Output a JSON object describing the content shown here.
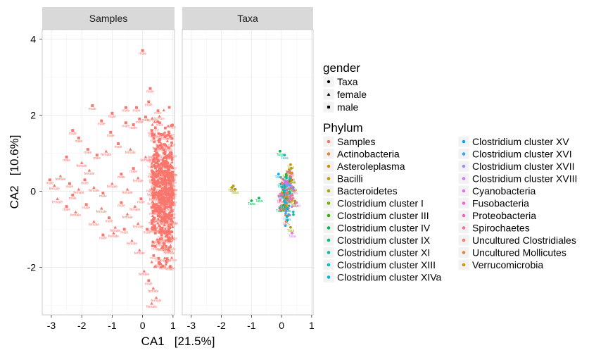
{
  "chart_data": {
    "type": "scatter",
    "facets": [
      "Samples",
      "Taxa"
    ],
    "xlabel": "CA1   [21.5%]",
    "ylabel": "CA2   [10.6%]",
    "xlim": [
      -3.3,
      1.05
    ],
    "ylim": [
      -3.25,
      4.25
    ],
    "x_ticks": [
      -3,
      -2,
      -1,
      0,
      1
    ],
    "x_tick_labels": [
      "-3",
      "-2",
      "-1",
      "0",
      "1"
    ],
    "y_ticks": [
      -2,
      0,
      2,
      4
    ],
    "y_tick_labels": [
      "-2",
      "0",
      "2",
      "4"
    ],
    "grid": true,
    "legend_position": "right",
    "legend_shape": {
      "title": "gender",
      "entries": [
        {
          "label": "Taxa",
          "shape": "circle"
        },
        {
          "label": "female",
          "shape": "triangle"
        },
        {
          "label": "male",
          "shape": "square"
        }
      ]
    },
    "legend_color": {
      "title": "Phylum",
      "entries": [
        {
          "label": "Samples",
          "color": "#F8766D"
        },
        {
          "label": "Actinobacteria",
          "color": "#EB8335"
        },
        {
          "label": "Asteroleplasma",
          "color": "#D89000"
        },
        {
          "label": "Bacilli",
          "color": "#C09B00"
        },
        {
          "label": "Bacteroidetes",
          "color": "#A3A500"
        },
        {
          "label": "Clostridium cluster I",
          "color": "#7CAE00"
        },
        {
          "label": "Clostridium cluster III",
          "color": "#39B600"
        },
        {
          "label": "Clostridium cluster IV",
          "color": "#00BB4E"
        },
        {
          "label": "Clostridium cluster IX",
          "color": "#00BF7D"
        },
        {
          "label": "Clostridium cluster XI",
          "color": "#00C1A3"
        },
        {
          "label": "Clostridium cluster XIII",
          "color": "#00BFC4"
        },
        {
          "label": "Clostridium cluster XIVa",
          "color": "#00BAE0"
        },
        {
          "label": "Clostridium cluster XV",
          "color": "#00B0F6"
        },
        {
          "label": "Clostridium cluster XVI",
          "color": "#35A2FF"
        },
        {
          "label": "Clostridium cluster XVII",
          "color": "#9590FF"
        },
        {
          "label": "Clostridium cluster XVIII",
          "color": "#C77CFF"
        },
        {
          "label": "Cyanobacteria",
          "color": "#E76BF3"
        },
        {
          "label": "Fusobacteria",
          "color": "#FA62DB"
        },
        {
          "label": "Proteobacteria",
          "color": "#FF62BC"
        },
        {
          "label": "Spirochaetes",
          "color": "#FF6A98"
        },
        {
          "label": "Uncultured Clostridiales",
          "color": "#F8766D"
        },
        {
          "label": "Uncultured Mollicutes",
          "color": "#EB8335"
        },
        {
          "label": "Verrucomicrobia",
          "color": "#D89000"
        }
      ]
    },
    "point_labels": {
      "female": "female",
      "male": "male",
      "taxa": "Taxa"
    },
    "samples_points": [
      {
        "x": 0.0,
        "y": 3.7,
        "gender": "male"
      },
      {
        "x": 0.25,
        "y": 2.7,
        "gender": "male"
      },
      {
        "x": 0.2,
        "y": 2.35,
        "gender": "male"
      },
      {
        "x": -0.2,
        "y": 2.2,
        "gender": "male"
      },
      {
        "x": -0.55,
        "y": 2.2,
        "gender": "male"
      },
      {
        "x": -1.65,
        "y": 2.25,
        "gender": "male"
      },
      {
        "x": -1.0,
        "y": 2.05,
        "gender": "male"
      },
      {
        "x": 0.1,
        "y": 1.95,
        "gender": "male"
      },
      {
        "x": -0.1,
        "y": 1.9,
        "gender": "male"
      },
      {
        "x": -1.35,
        "y": 1.85,
        "gender": "male"
      },
      {
        "x": -0.55,
        "y": 1.8,
        "gender": "male"
      },
      {
        "x": -0.3,
        "y": 1.75,
        "gender": "male"
      },
      {
        "x": -2.3,
        "y": 1.6,
        "gender": "male"
      },
      {
        "x": -1.05,
        "y": 1.55,
        "gender": "male"
      },
      {
        "x": 0.3,
        "y": 1.6,
        "gender": "male"
      },
      {
        "x": -2.1,
        "y": 1.4,
        "gender": "male"
      },
      {
        "x": -1.8,
        "y": 1.1,
        "gender": "male"
      },
      {
        "x": -2.5,
        "y": 0.9,
        "gender": "male"
      },
      {
        "x": -2.0,
        "y": 0.75,
        "gender": "female"
      },
      {
        "x": -1.5,
        "y": 0.95,
        "gender": "male"
      },
      {
        "x": -1.2,
        "y": 1.05,
        "gender": "female"
      },
      {
        "x": -0.8,
        "y": 1.25,
        "gender": "male"
      },
      {
        "x": -0.4,
        "y": 1.1,
        "gender": "female"
      },
      {
        "x": -2.7,
        "y": 0.4,
        "gender": "female"
      },
      {
        "x": -3.05,
        "y": 0.3,
        "gender": "male"
      },
      {
        "x": -2.9,
        "y": 0.15,
        "gender": "female"
      },
      {
        "x": -2.4,
        "y": 0.2,
        "gender": "male"
      },
      {
        "x": -2.1,
        "y": 0.05,
        "gender": "female"
      },
      {
        "x": -1.9,
        "y": 0.3,
        "gender": "male"
      },
      {
        "x": -1.6,
        "y": 0.1,
        "gender": "female"
      },
      {
        "x": -1.3,
        "y": -0.05,
        "gender": "male"
      },
      {
        "x": -1.0,
        "y": 0.2,
        "gender": "female"
      },
      {
        "x": -0.7,
        "y": 0.45,
        "gender": "male"
      },
      {
        "x": -0.5,
        "y": 0.05,
        "gender": "female"
      },
      {
        "x": -0.3,
        "y": 0.6,
        "gender": "male"
      },
      {
        "x": -2.8,
        "y": -0.2,
        "gender": "female"
      },
      {
        "x": -2.5,
        "y": -0.4,
        "gender": "male"
      },
      {
        "x": -2.2,
        "y": -0.55,
        "gender": "female"
      },
      {
        "x": -1.85,
        "y": -0.35,
        "gender": "male"
      },
      {
        "x": -1.6,
        "y": -0.8,
        "gender": "female"
      },
      {
        "x": -1.35,
        "y": -0.45,
        "gender": "female"
      },
      {
        "x": -1.1,
        "y": -0.7,
        "gender": "male"
      },
      {
        "x": -0.9,
        "y": -0.95,
        "gender": "female"
      },
      {
        "x": -0.7,
        "y": -0.3,
        "gender": "male"
      },
      {
        "x": -0.5,
        "y": -0.6,
        "gender": "female"
      },
      {
        "x": -0.35,
        "y": -1.3,
        "gender": "female"
      },
      {
        "x": -0.95,
        "y": -1.1,
        "gender": "female"
      },
      {
        "x": -1.3,
        "y": -1.15,
        "gender": "male"
      },
      {
        "x": -0.15,
        "y": -0.85,
        "gender": "female"
      },
      {
        "x": -0.1,
        "y": -1.55,
        "gender": "female"
      },
      {
        "x": 0.05,
        "y": -2.1,
        "gender": "female"
      },
      {
        "x": 0.2,
        "y": -2.35,
        "gender": "male"
      },
      {
        "x": 0.35,
        "y": -2.55,
        "gender": "female"
      },
      {
        "x": 0.45,
        "y": -2.8,
        "gender": "female"
      },
      {
        "x": 0.3,
        "y": -2.95,
        "gender": "female"
      },
      {
        "x": -0.15,
        "y": 0.35,
        "gender": "female"
      },
      {
        "x": -0.05,
        "y": -0.2,
        "gender": "male"
      },
      {
        "x": 0.1,
        "y": 0.9,
        "gender": "female"
      },
      {
        "x": 0.15,
        "y": -1.0,
        "gender": "male"
      },
      {
        "x": -1.75,
        "y": 0.55,
        "gender": "female"
      },
      {
        "x": -2.3,
        "y": -0.1,
        "gender": "male"
      },
      {
        "x": -0.6,
        "y": -1.0,
        "gender": "male"
      },
      {
        "x": -0.25,
        "y": -0.4,
        "gender": "female"
      },
      {
        "x": 0.55,
        "y": 1.3,
        "gender": "male"
      },
      {
        "x": 0.6,
        "y": -1.9,
        "gender": "female"
      }
    ],
    "samples_band": {
      "x_range": [
        0.3,
        1.0
      ],
      "y_range": [
        -2.6,
        2.6
      ],
      "count": 520
    },
    "taxa_points": [
      {
        "x": -1.65,
        "y": 0.1,
        "phylum": "Bacteroidetes"
      },
      {
        "x": -1.55,
        "y": 0.05,
        "phylum": "Bacteroidetes"
      },
      {
        "x": -1.6,
        "y": 0.14,
        "phylum": "Bacilli"
      },
      {
        "x": -0.75,
        "y": -0.18,
        "phylum": "Clostridium cluster IV"
      },
      {
        "x": -1.0,
        "y": -0.25,
        "phylum": "Clostridium cluster IV"
      },
      {
        "x": -0.05,
        "y": 1.05,
        "phylum": "Clostridium cluster IV"
      },
      {
        "x": 0.1,
        "y": 0.95,
        "phylum": "Clostridium cluster XIII"
      },
      {
        "x": 0.3,
        "y": 0.7,
        "phylum": "Bacilli"
      },
      {
        "x": -0.1,
        "y": 0.45,
        "phylum": "Clostridium cluster XV"
      },
      {
        "x": 0.35,
        "y": -1.1,
        "phylum": "Cyanobacteria"
      },
      {
        "x": 0.3,
        "y": -0.95,
        "phylum": "Bacteroidetes"
      },
      {
        "x": 0.5,
        "y": -0.3,
        "phylum": "Cyanobacteria"
      }
    ],
    "taxa_cluster": {
      "x_range": [
        -0.15,
        0.5
      ],
      "y_range": [
        -1.0,
        0.85
      ],
      "count": 150
    }
  }
}
